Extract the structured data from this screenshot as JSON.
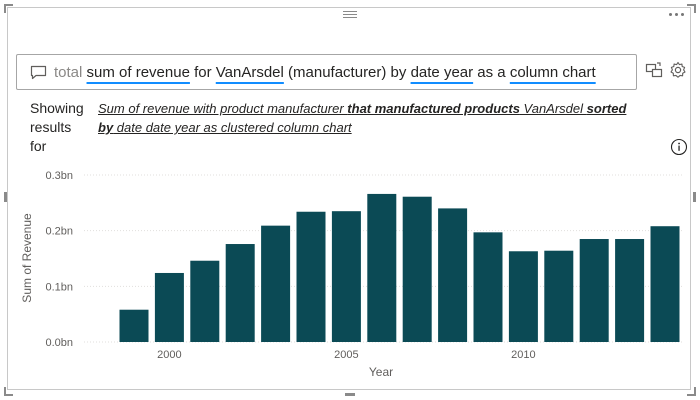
{
  "qa": {
    "query_tokens": [
      {
        "text": "total",
        "style": "muted"
      },
      {
        "text": " ",
        "style": "plain"
      },
      {
        "text": "sum of revenue",
        "style": "underline"
      },
      {
        "text": " for ",
        "style": "plain"
      },
      {
        "text": "VanArsdel",
        "style": "underline"
      },
      {
        "text": " (manufacturer) by ",
        "style": "plain"
      },
      {
        "text": "date year",
        "style": "underline"
      },
      {
        "text": " as a ",
        "style": "plain"
      },
      {
        "text": "column chart",
        "style": "underline"
      }
    ],
    "underline_color": "#118dff"
  },
  "restatement": {
    "prefix": "Showing results for",
    "parts": [
      {
        "text": "Sum of revenue with product manufacturer ",
        "bold": false
      },
      {
        "text": "that manufactured products",
        "bold": true
      },
      {
        "text": " VanArsdel ",
        "bold": false
      },
      {
        "text": "sorted by",
        "bold": true
      },
      {
        "text": " date date year as clustered column chart",
        "bold": false
      }
    ]
  },
  "icons": {
    "chat": "chat-bubble-icon",
    "convert": "convert-to-visual-icon",
    "settings": "gear-icon",
    "info": "info-icon",
    "more": "more-options-icon"
  },
  "chart_data": {
    "type": "bar",
    "color": "#0b4a55",
    "x": [
      1999,
      2000,
      2001,
      2002,
      2003,
      2004,
      2005,
      2006,
      2007,
      2008,
      2009,
      2010,
      2011,
      2012,
      2013,
      2014
    ],
    "values": [
      0.058,
      0.124,
      0.146,
      0.176,
      0.209,
      0.234,
      0.235,
      0.266,
      0.261,
      0.24,
      0.197,
      0.163,
      0.164,
      0.185,
      0.185,
      0.208
    ],
    "ylim": [
      0,
      0.3
    ],
    "y_ticks": [
      {
        "value": 0.3,
        "label": "0.3bn"
      },
      {
        "value": 0.2,
        "label": "0.2bn"
      },
      {
        "value": 0.1,
        "label": "0.1bn"
      },
      {
        "value": 0.0,
        "label": "0.0bn"
      }
    ],
    "x_ticks": [
      {
        "value": 2000,
        "label": "2000"
      },
      {
        "value": 2005,
        "label": "2005"
      },
      {
        "value": 2010,
        "label": "2010"
      }
    ],
    "xlabel": "Year",
    "ylabel": "Sum of Revenue",
    "grid": true
  }
}
